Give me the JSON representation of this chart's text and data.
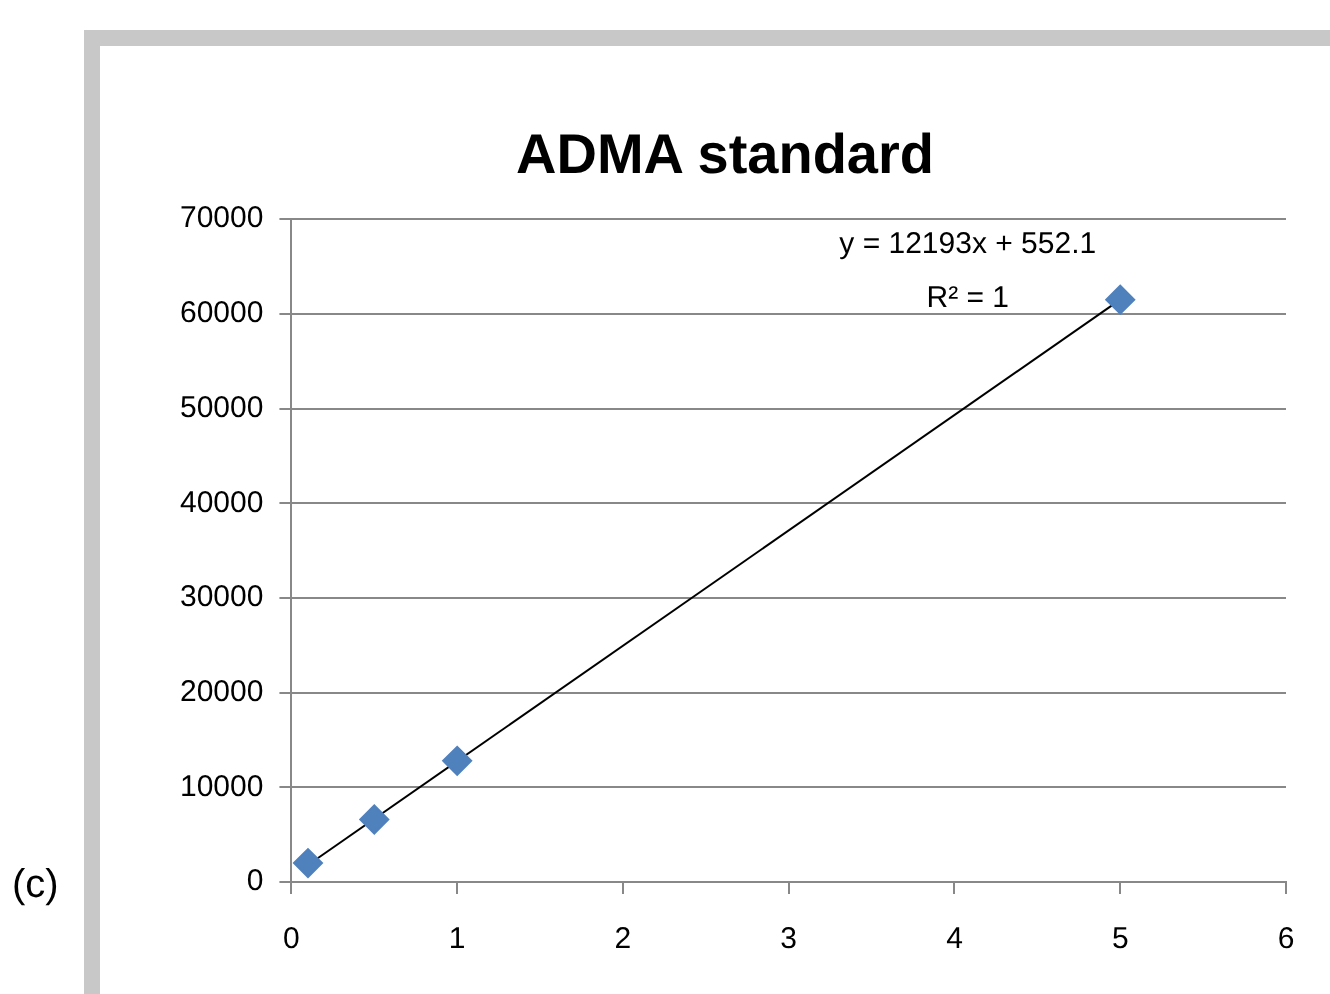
{
  "chart_data": {
    "type": "scatter",
    "title": "ADMA standard",
    "series": [
      {
        "type": "scatter",
        "color": "#4f81bd",
        "x": [
          0.1,
          0.5,
          1,
          5
        ],
        "values": [
          2000,
          6600,
          12800,
          61500
        ],
        "marker": "diamond"
      },
      {
        "type": "line",
        "color": "#000000",
        "x": [
          0.1,
          5
        ],
        "values": [
          1800,
          61500
        ],
        "marker": "none"
      }
    ],
    "xlim": [
      0,
      6
    ],
    "xticks": [
      0,
      1,
      2,
      3,
      4,
      5,
      6
    ],
    "ylim": [
      0,
      70000
    ],
    "yticks": [
      0,
      10000,
      20000,
      30000,
      40000,
      50000,
      60000,
      70000
    ],
    "grid": "y",
    "legend": false,
    "annotations": [
      "y = 12193x + 552.1",
      "R² = 1",
      "(c)"
    ]
  }
}
